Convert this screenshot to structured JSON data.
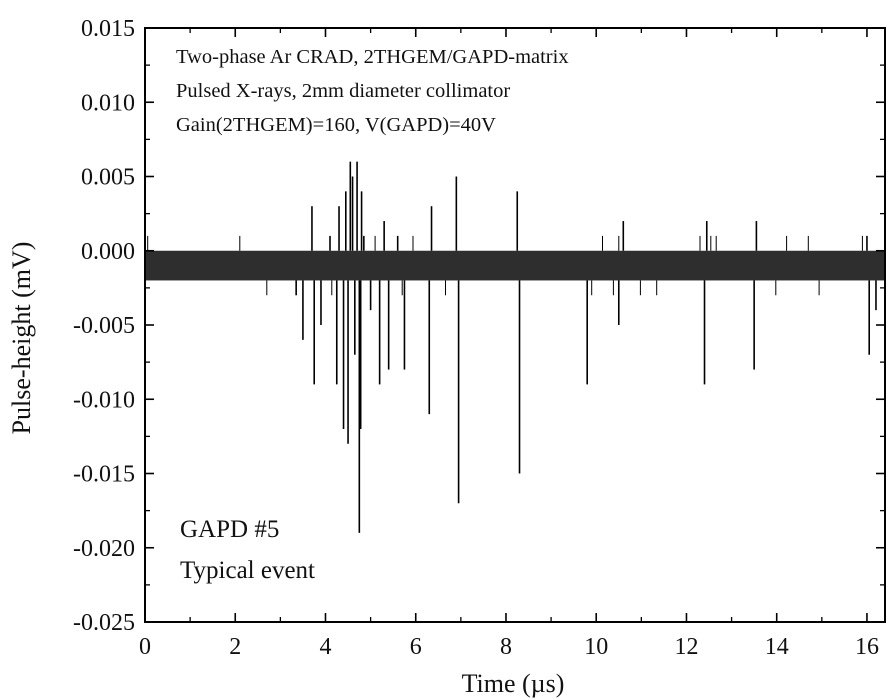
{
  "chart_data": {
    "type": "line",
    "title": "",
    "xlabel": "Time (µs)",
    "ylabel": "Pulse-height (mV)",
    "xlim": [
      0,
      16.4
    ],
    "ylim": [
      -0.025,
      0.015
    ],
    "x_ticks": [
      0,
      2,
      4,
      6,
      8,
      10,
      12,
      14,
      16
    ],
    "x_tick_labels": [
      "0",
      "2",
      "4",
      "6",
      "8",
      "10",
      "12",
      "14",
      "16"
    ],
    "y_ticks": [
      0.015,
      0.01,
      0.005,
      0.0,
      -0.005,
      -0.01,
      -0.015,
      -0.02,
      -0.025
    ],
    "y_tick_labels": [
      "0.015",
      "0.010",
      "0.005",
      "0.000",
      "-0.005",
      "-0.010",
      "-0.015",
      "-0.020",
      "-0.025"
    ],
    "grid": false,
    "legend": "none",
    "line_color": "#000000",
    "baseline": {
      "min": -0.002,
      "max": 0.0
    },
    "series": [
      {
        "x": [
          3.35,
          3.5,
          3.7,
          3.75,
          3.9,
          4.1,
          4.25,
          4.3,
          4.4,
          4.45,
          4.5,
          4.55,
          4.6,
          4.65,
          4.7,
          4.75,
          4.78,
          4.8,
          4.85,
          5.0,
          5.2,
          5.3,
          5.4,
          5.6,
          5.75,
          6.3,
          6.35,
          6.9,
          6.95,
          8.25,
          8.3,
          9.8,
          10.5,
          10.6,
          12.4,
          12.45,
          13.5,
          13.55,
          16.0,
          16.05,
          16.2
        ],
        "values": [
          -0.003,
          -0.006,
          0.003,
          -0.009,
          -0.005,
          0.001,
          -0.009,
          0.003,
          -0.012,
          0.004,
          -0.013,
          0.006,
          0.005,
          -0.007,
          0.006,
          -0.019,
          -0.012,
          0.004,
          0.001,
          -0.004,
          -0.009,
          0.002,
          -0.008,
          0.001,
          -0.008,
          -0.011,
          0.003,
          0.005,
          -0.017,
          0.004,
          -0.015,
          -0.009,
          -0.005,
          0.002,
          -0.009,
          0.002,
          -0.008,
          0.002,
          0.001,
          -0.007,
          -0.004
        ]
      }
    ],
    "annotations": [
      {
        "lines": [
          "Two-phase Ar CRAD, 2THGEM/GAPD-matrix",
          "Pulsed X-rays, 2mm diameter collimator",
          "Gain(2THGEM)=160, V(GAPD)=40V"
        ],
        "position": "top-left"
      },
      {
        "lines": [
          "GAPD #5",
          "Typical event"
        ],
        "position": "bottom-left"
      }
    ]
  }
}
